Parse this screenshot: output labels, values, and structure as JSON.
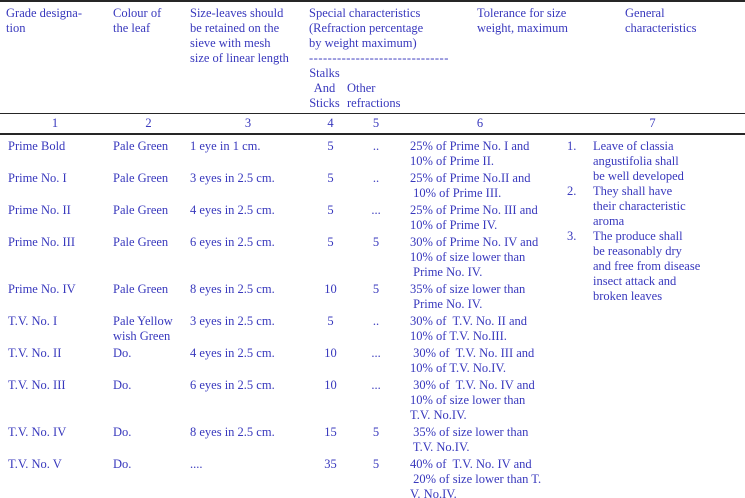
{
  "table": {
    "text_color": "#3838bd",
    "header": {
      "grade": "Grade designa-\ntion",
      "colour": "Colour of\nthe leaf",
      "size": "Size-leaves should\nbe retained on the\nsieve with mesh\nsize of linear length",
      "special": {
        "title": "Special characteristics\n(Refraction percentage\nby weight maximum)",
        "dashes": "------------------------------",
        "sub_stalks": "Stalks\nAnd\nSticks",
        "sub_other": "Other\nrefractions"
      },
      "tolerance": "Tolerance for size\nweight, maximum",
      "general": "General\ncharacteristics"
    },
    "column_numbers": [
      "1",
      "2",
      "3",
      "4",
      "5",
      "6",
      "7"
    ],
    "rows": [
      {
        "grade": "Prime Bold",
        "colour": "Pale Green",
        "size": "1 eye in 1 cm.",
        "stalks": "5",
        "other": "..",
        "tolerance": "25% of Prime No. I and\n10% of Prime II."
      },
      {
        "grade": "Prime No. I",
        "colour": "Pale Green",
        "size": "3 eyes in 2.5 cm.",
        "stalks": "5",
        "other": "..",
        "tolerance": "25% of Prime No.II and\n 10% of Prime III."
      },
      {
        "grade": "Prime No. II",
        "colour": "Pale Green",
        "size": "4 eyes in 2.5 cm.",
        "stalks": "5",
        "other": "...",
        "tolerance": "25% of Prime No. III and\n10% of Prime IV."
      },
      {
        "grade": "Prime No. III",
        "colour": "Pale Green",
        "size": "6 eyes in 2.5 cm.",
        "stalks": "5",
        "other": "5",
        "tolerance": "30% of Prime No. IV and\n10% of size lower than\n Prime No. IV."
      },
      {
        "grade": "Prime No. IV",
        "colour": "Pale Green",
        "size": "8 eyes in 2.5 cm.",
        "stalks": "10",
        "other": "5",
        "tolerance": "35% of size lower than\n Prime No. IV."
      },
      {
        "grade": "T.V. No. I",
        "colour": "Pale Yellow\nwish Green",
        "size": "3 eyes in 2.5 cm.",
        "stalks": "5",
        "other": "..",
        "tolerance": "30% of  T.V. No. II and\n10% of T.V. No.III."
      },
      {
        "grade": "T.V. No. II",
        "colour": "Do.",
        "size": "4 eyes in 2.5 cm.",
        "stalks": "10",
        "other": "...",
        "tolerance": " 30% of  T.V. No. III and\n10% of T.V. No.IV."
      },
      {
        "grade": "T.V. No. III",
        "colour": "Do.",
        "size": "6 eyes in 2.5 cm.",
        "stalks": "10",
        "other": "...",
        "tolerance": " 30% of  T.V. No. IV and\n10% of size lower than\nT.V. No.IV."
      },
      {
        "grade": "T.V. No. IV",
        "colour": "Do.",
        "size": "8 eyes in 2.5 cm.",
        "stalks": "15",
        "other": "5",
        "tolerance": " 35% of size lower than\n T.V. No.IV."
      },
      {
        "grade": "T.V. No. V",
        "colour": "Do.",
        "size": "....",
        "stalks": "35",
        "other": "5",
        "tolerance": "40% of  T.V. No. IV and\n 20% of size lower than T.\nV. No.IV."
      }
    ],
    "general_characteristics": [
      {
        "num": "1.",
        "text": "Leave of classia\nangustifolia shall\nbe well developed"
      },
      {
        "num": "2.",
        "text": "They shall have\ntheir characteristic\naroma"
      },
      {
        "num": "3.",
        "text": "The produce shall\nbe reasonably dry\nand free from disease\ninsect attack and\nbroken leaves"
      }
    ]
  }
}
